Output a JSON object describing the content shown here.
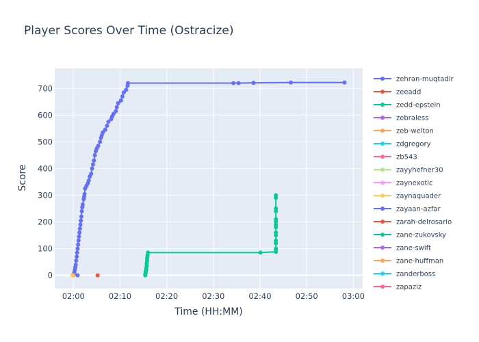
{
  "chart_data": {
    "type": "line",
    "title": "Player Scores Over Time (Ostracize)",
    "xlabel": "Time (HH:MM)",
    "ylabel": "Score",
    "x_unit": "minutes after 02:00",
    "xlim": [
      -4,
      62
    ],
    "ylim": [
      -50,
      775
    ],
    "xticks": [
      {
        "v": 0,
        "label": "02:00"
      },
      {
        "v": 10,
        "label": "02:10"
      },
      {
        "v": 20,
        "label": "02:20"
      },
      {
        "v": 30,
        "label": "02:30"
      },
      {
        "v": 40,
        "label": "02:40"
      },
      {
        "v": 50,
        "label": "02:50"
      },
      {
        "v": 60,
        "label": "03:00"
      }
    ],
    "yticks": [
      0,
      100,
      200,
      300,
      400,
      500,
      600,
      700
    ],
    "grid": true,
    "legend_position": "right",
    "series": [
      {
        "name": "zehran-muqtadir",
        "color": "#636efa",
        "points": [
          [
            0.0,
            0
          ],
          [
            0.1,
            5
          ],
          [
            0.2,
            10
          ],
          [
            0.3,
            20
          ],
          [
            0.4,
            30
          ],
          [
            0.5,
            40
          ],
          [
            0.6,
            55
          ],
          [
            0.7,
            70
          ],
          [
            0.8,
            85
          ],
          [
            0.9,
            100
          ],
          [
            1.0,
            115
          ],
          [
            1.1,
            130
          ],
          [
            1.2,
            145
          ],
          [
            1.3,
            160
          ],
          [
            1.4,
            175
          ],
          [
            1.5,
            190
          ],
          [
            1.6,
            205
          ],
          [
            1.7,
            220
          ],
          [
            1.8,
            240
          ],
          [
            1.9,
            255
          ],
          [
            2.0,
            265
          ],
          [
            2.2,
            285
          ],
          [
            2.3,
            295
          ],
          [
            2.4,
            305
          ],
          [
            2.5,
            325
          ],
          [
            2.8,
            335
          ],
          [
            3.1,
            345
          ],
          [
            3.3,
            355
          ],
          [
            3.5,
            370
          ],
          [
            3.8,
            380
          ],
          [
            4.0,
            400
          ],
          [
            4.2,
            415
          ],
          [
            4.4,
            430
          ],
          [
            4.6,
            450
          ],
          [
            4.8,
            465
          ],
          [
            5.0,
            475
          ],
          [
            5.3,
            485
          ],
          [
            5.7,
            500
          ],
          [
            5.9,
            515
          ],
          [
            6.1,
            525
          ],
          [
            6.3,
            535
          ],
          [
            6.8,
            545
          ],
          [
            7.2,
            560
          ],
          [
            7.5,
            575
          ],
          [
            8.1,
            585
          ],
          [
            8.3,
            595
          ],
          [
            8.6,
            605
          ],
          [
            9.1,
            615
          ],
          [
            9.3,
            630
          ],
          [
            9.6,
            645
          ],
          [
            10.2,
            655
          ],
          [
            10.5,
            670
          ],
          [
            10.8,
            685
          ],
          [
            11.3,
            695
          ],
          [
            11.6,
            710
          ],
          [
            11.7,
            720
          ],
          [
            34.3,
            720
          ],
          [
            35.4,
            720
          ],
          [
            38.6,
            721
          ],
          [
            46.6,
            722
          ],
          [
            58.1,
            722
          ]
        ]
      },
      {
        "name": "zeeadd",
        "color": "#ef553b",
        "points": [
          [
            5.2,
            0
          ]
        ]
      },
      {
        "name": "zedd-epstein",
        "color": "#00cc96",
        "points": [
          [
            15.4,
            0
          ],
          [
            15.4,
            5
          ],
          [
            15.5,
            10
          ],
          [
            15.5,
            15
          ],
          [
            15.6,
            20
          ],
          [
            15.6,
            25
          ],
          [
            15.7,
            35
          ],
          [
            15.7,
            45
          ],
          [
            15.8,
            55
          ],
          [
            15.8,
            65
          ],
          [
            15.9,
            75
          ],
          [
            16.0,
            85
          ],
          [
            40.1,
            85
          ],
          [
            43.4,
            88
          ],
          [
            43.4,
            92
          ],
          [
            43.4,
            100
          ],
          [
            43.4,
            120
          ],
          [
            43.4,
            130
          ],
          [
            43.4,
            150
          ],
          [
            43.4,
            160
          ],
          [
            43.4,
            180
          ],
          [
            43.4,
            190
          ],
          [
            43.4,
            200
          ],
          [
            43.4,
            210
          ],
          [
            43.4,
            240
          ],
          [
            43.4,
            250
          ],
          [
            43.4,
            290
          ],
          [
            43.4,
            300
          ]
        ]
      },
      {
        "name": "zebraless",
        "color": "#ab63fa",
        "points": []
      },
      {
        "name": "zeb-welton",
        "color": "#ffa15a",
        "points": [
          [
            0.0,
            0
          ]
        ]
      },
      {
        "name": "zdgregory",
        "color": "#19d3f3",
        "points": []
      },
      {
        "name": "zb543",
        "color": "#ff6692",
        "points": []
      },
      {
        "name": "zayyhefner30",
        "color": "#b6e880",
        "points": []
      },
      {
        "name": "zaynexotic",
        "color": "#ff97ff",
        "points": []
      },
      {
        "name": "zaynaquader",
        "color": "#fecb52",
        "points": [
          [
            -0.2,
            0
          ]
        ]
      },
      {
        "name": "zayaan-azfar",
        "color": "#636efa",
        "points": [
          [
            0.9,
            0
          ]
        ]
      },
      {
        "name": "zarah-delrosario",
        "color": "#ef553b",
        "points": []
      },
      {
        "name": "zane-zukovsky",
        "color": "#00cc96",
        "points": []
      },
      {
        "name": "zane-swift",
        "color": "#ab63fa",
        "points": []
      },
      {
        "name": "zane-huffman",
        "color": "#ffa15a",
        "points": []
      },
      {
        "name": "zanderboss",
        "color": "#19d3f3",
        "points": []
      },
      {
        "name": "zapaziz",
        "color": "#ff6692",
        "points": []
      }
    ]
  }
}
